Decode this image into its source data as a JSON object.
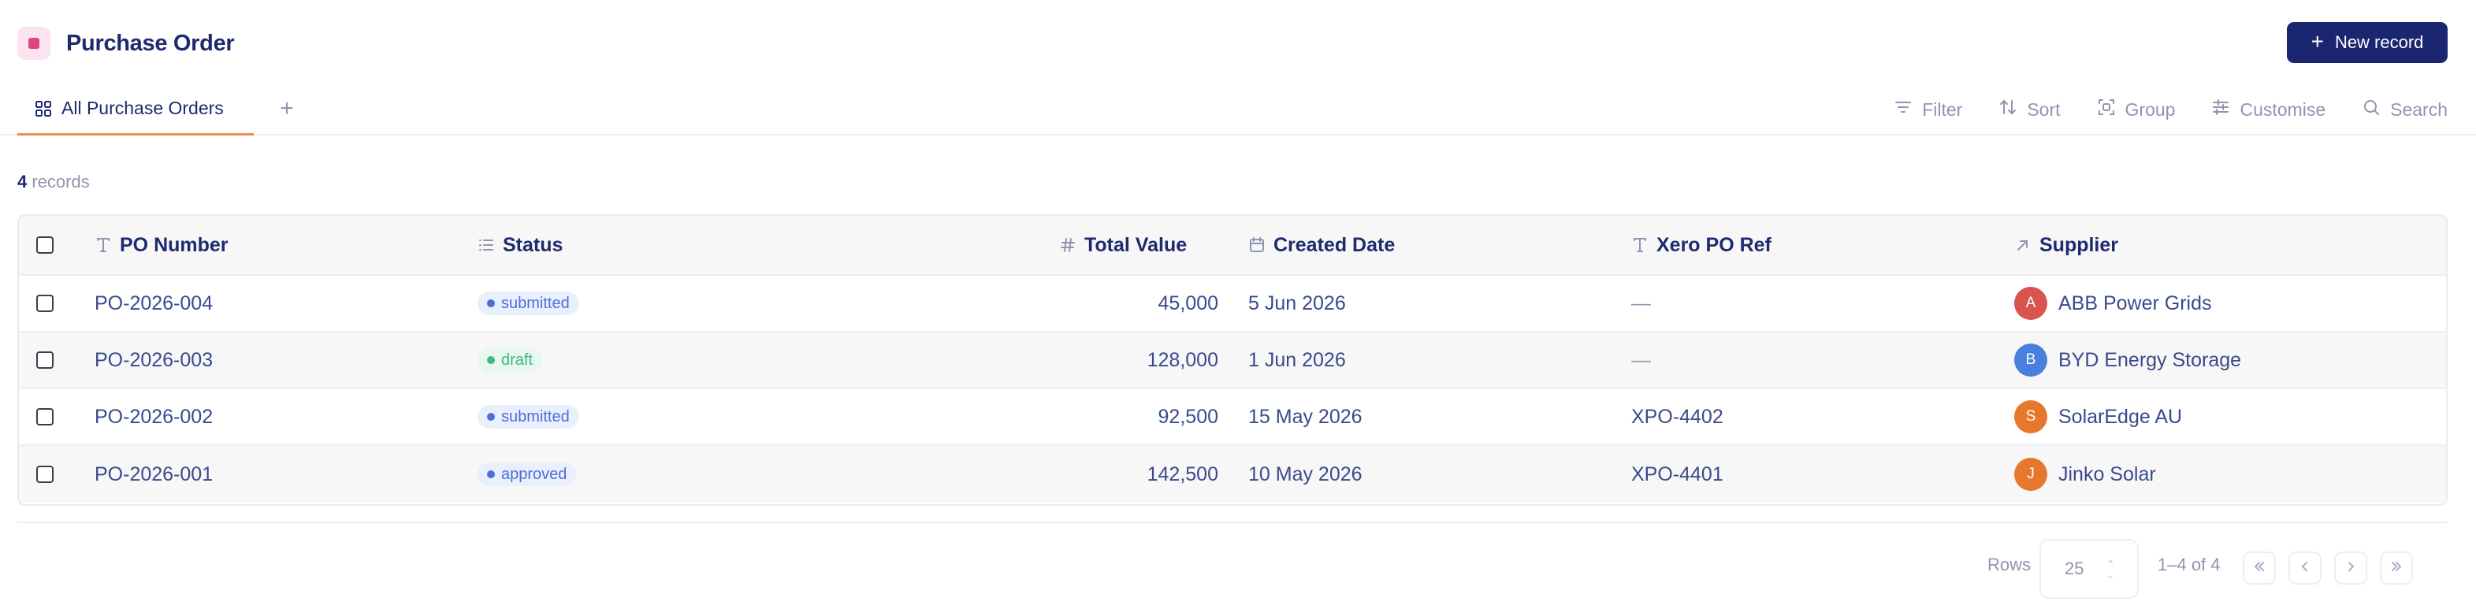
{
  "header": {
    "title": "Purchase Order",
    "new_record_label": "New record"
  },
  "tabs": [
    {
      "label": "All Purchase Orders",
      "active": true
    }
  ],
  "toolbar": {
    "filter": "Filter",
    "sort": "Sort",
    "group": "Group",
    "customise": "Customise",
    "search": "Search"
  },
  "records": {
    "count": "4",
    "label": "records"
  },
  "table": {
    "columns": [
      "PO Number",
      "Status",
      "Total Value",
      "Created Date",
      "Xero PO Ref",
      "Supplier"
    ],
    "column_icons": [
      "text-type-icon",
      "list-icon",
      "hash-icon",
      "calendar-icon",
      "text-type-icon",
      "arrow-up-right-icon"
    ],
    "rows": [
      {
        "po": "PO-2026-004",
        "status": "submitted",
        "total": "45,000",
        "date": "5 Jun 2026",
        "xero": "—",
        "supplier": "ABB Power Grids",
        "initial": "A",
        "avatar_color": "#d9534f"
      },
      {
        "po": "PO-2026-003",
        "status": "draft",
        "total": "128,000",
        "date": "1 Jun 2026",
        "xero": "—",
        "supplier": "BYD Energy Storage",
        "initial": "B",
        "avatar_color": "#4a7fe0"
      },
      {
        "po": "PO-2026-002",
        "status": "submitted",
        "total": "92,500",
        "date": "15 May 2026",
        "xero": "XPO-4402",
        "supplier": "SolarEdge AU",
        "initial": "S",
        "avatar_color": "#e8772e"
      },
      {
        "po": "PO-2026-001",
        "status": "approved",
        "total": "142,500",
        "date": "10 May 2026",
        "xero": "XPO-4401",
        "supplier": "Jinko Solar",
        "initial": "J",
        "avatar_color": "#e8772e"
      }
    ]
  },
  "pagination": {
    "rows_label": "Rows",
    "page_size": "25",
    "range": "1–4 of 4"
  },
  "colors": {
    "accent": "#1b2670",
    "tab_underline": "#f08a54",
    "app_icon": "#e0457f"
  }
}
